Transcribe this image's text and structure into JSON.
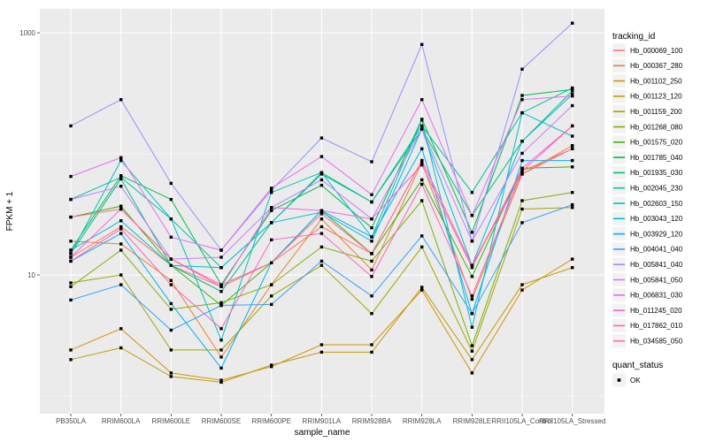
{
  "chart_data": {
    "type": "line",
    "title": "",
    "xlabel": "sample_name",
    "ylabel": "FPKM + 1",
    "y_scale": "log10",
    "y_tick_labels": [
      "1000",
      "10"
    ],
    "y_tick_values": [
      1000,
      10
    ],
    "y_minor_gridline_values": [
      100,
      1
    ],
    "panel_bg": "#ebebeb",
    "gridline_color": "#ffffff",
    "point_color": "#000000",
    "point_shape": "filled-square",
    "legend_title": "tracking_id",
    "quant_legend_title": "quant_status",
    "quant_legend_items": [
      "OK"
    ],
    "categories": [
      "PB350LA",
      "RRIM600LA",
      "RRIM600LE",
      "RRIM600SE",
      "RRIM600PE",
      "RRIM901LA",
      "RRIM928BA",
      "RRIM928LA",
      "RRIM928LE",
      "RRII105LA_Control",
      "RRII105LA_Stressed"
    ],
    "series": [
      {
        "name": "Hb_000069_100",
        "color": "#F8766D",
        "values": [
          14,
          25,
          12,
          8,
          12.6,
          25,
          15,
          88,
          12,
          72,
          110
        ]
      },
      {
        "name": "Hb_000367_280",
        "color": "#EA8331",
        "values": [
          19,
          18,
          9,
          2.1,
          8.3,
          29,
          11,
          85,
          6.3,
          68,
          117
        ]
      },
      {
        "name": "Hb_001102_250",
        "color": "#D89000",
        "values": [
          2.4,
          3.6,
          1.55,
          1.35,
          1.75,
          2.65,
          2.65,
          7.5,
          1.55,
          7.5,
          13.5
        ]
      },
      {
        "name": "Hb_001123_120",
        "color": "#C09B00",
        "values": [
          2.0,
          2.5,
          1.45,
          1.3,
          1.8,
          2.3,
          2.3,
          7.9,
          2.0,
          8.3,
          11.5
        ]
      },
      {
        "name": "Hb_001159_200",
        "color": "#A3A500",
        "values": [
          8.6,
          10,
          2.4,
          2.4,
          6.7,
          12,
          4.8,
          17,
          2.35,
          35,
          36
        ]
      },
      {
        "name": "Hb_001268_080",
        "color": "#7CAE00",
        "values": [
          8,
          16,
          5.2,
          5.9,
          8.3,
          17,
          13,
          41,
          2.6,
          41,
          48
        ]
      },
      {
        "name": "Hb_001575_020",
        "color": "#39B600",
        "values": [
          30,
          37,
          12,
          5.6,
          12.6,
          34,
          15,
          61,
          9.7,
          76,
          78
        ]
      },
      {
        "name": "Hb_001785_040",
        "color": "#00BB4E",
        "values": [
          16,
          66,
          42,
          8.3,
          34,
          55,
          24.5,
          193,
          22.5,
          303,
          340
        ]
      },
      {
        "name": "Hb_001935_030",
        "color": "#00BF7D",
        "values": [
          15,
          62,
          12,
          7.3,
          27,
          70,
          40,
          160,
          31,
          127,
          330
        ]
      },
      {
        "name": "Hb_002045_230",
        "color": "#00C1A3",
        "values": [
          42,
          64,
          29,
          11.5,
          27,
          68,
          40,
          170,
          48,
          218,
          350
        ]
      },
      {
        "name": "Hb_002603_150",
        "color": "#00BFC4",
        "values": [
          15,
          88,
          29,
          2.9,
          48,
          70,
          20.6,
          190,
          3.7,
          218,
          140
        ]
      },
      {
        "name": "Hb_003043_120",
        "color": "#00BAE0",
        "values": [
          16,
          28,
          12,
          11.5,
          27,
          33,
          19,
          160,
          12,
          127,
          310
        ]
      },
      {
        "name": "Hb_003929_120",
        "color": "#00B0F6",
        "values": [
          13,
          22,
          5.8,
          1.7,
          12.6,
          34,
          20.6,
          110,
          4.8,
          88,
          88
        ]
      },
      {
        "name": "Hb_004041_040",
        "color": "#35A2FF",
        "values": [
          6.2,
          8.3,
          3.5,
          5.6,
          5.7,
          13,
          6.7,
          21,
          4.8,
          27,
          38
        ]
      },
      {
        "name": "Hb_005841_040",
        "color": "#9590FF",
        "values": [
          170,
          280,
          57,
          16,
          50,
          135,
          86,
          800,
          19,
          500,
          1200
        ]
      },
      {
        "name": "Hb_005841_050",
        "color": "#C77CFF",
        "values": [
          42,
          54,
          13.5,
          14,
          36,
          61,
          29,
          160,
          19,
          101,
          250
        ]
      },
      {
        "name": "Hb_006831_030",
        "color": "#E76BF3",
        "values": [
          65,
          93,
          20.5,
          16,
          52,
          95,
          46,
          280,
          31,
          280,
          300
        ]
      },
      {
        "name": "Hb_011245_020",
        "color": "#FA62DB",
        "values": [
          14,
          35,
          13.5,
          8,
          36,
          34,
          29,
          81,
          11.5,
          76,
          170
        ]
      },
      {
        "name": "Hb_017862_010",
        "color": "#FF62BC",
        "values": [
          13,
          24,
          8.3,
          3.6,
          19.5,
          22,
          9.7,
          56,
          6.7,
          72,
          170
        ]
      },
      {
        "name": "Hb_034585_050",
        "color": "#FF6A98",
        "values": [
          30,
          35,
          13.5,
          8.3,
          12.6,
          32,
          15,
          88,
          12,
          68,
          110
        ]
      }
    ]
  }
}
